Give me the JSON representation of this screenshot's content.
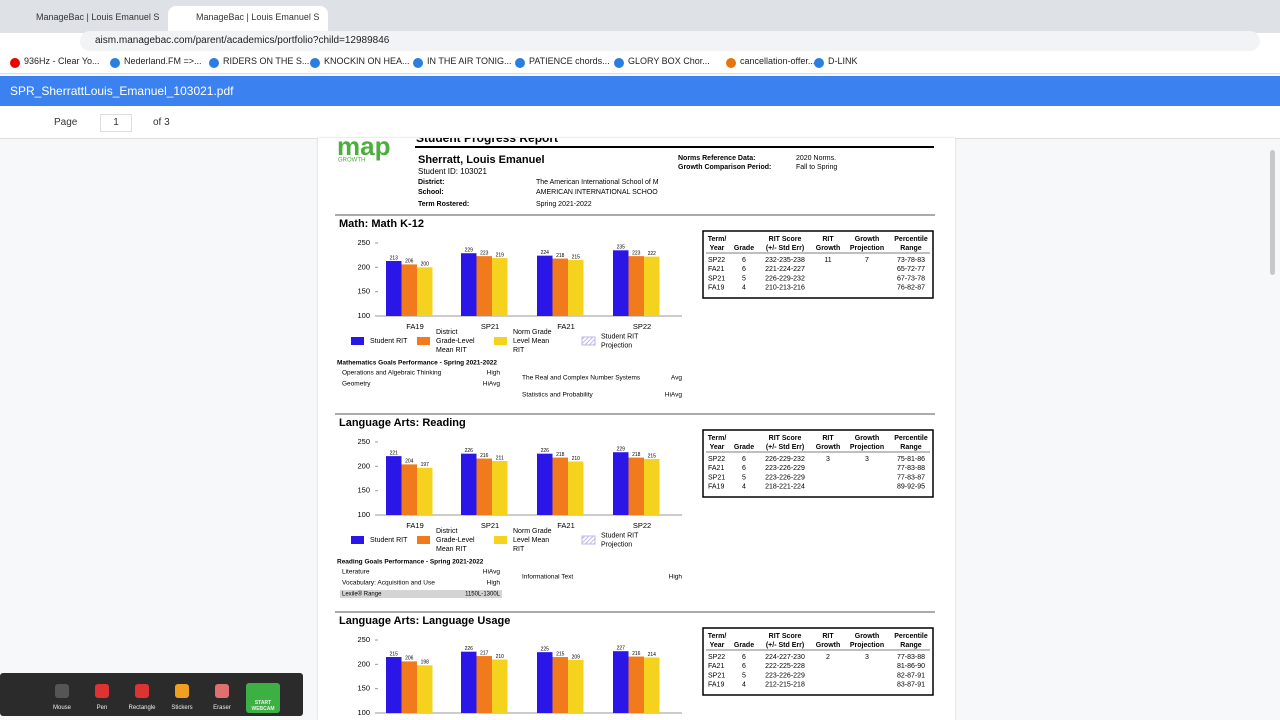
{
  "browser": {
    "tabs": [
      "ManageBac | Louis Emanuel S",
      "ManageBac | Louis Emanuel S"
    ],
    "url": "aism.managebac.com/parent/academics/portfolio?child=12989846",
    "bookmarks": [
      "936Hz - Clear Yo...",
      "Nederland.FM =>...",
      "RIDERS ON THE S...",
      "KNOCKIN ON HEA...",
      "IN THE AIR TONIG...",
      "PATIENCE chords...",
      "GLORY BOX Chor...",
      "cancellation-offer...",
      "D-LINK"
    ]
  },
  "viewer": {
    "file": "SPR_SherrattLouis_Emanuel_103021.pdf",
    "page_label": "Page",
    "page": "1",
    "page_count": "of 3"
  },
  "report": {
    "logo": "map",
    "logo_sub": "GROWTH",
    "title": "Student Progress Report",
    "student": "Sherratt, Louis Emanuel",
    "student_id": "Student ID: 103021",
    "fields": [
      {
        "label": "District:",
        "value": "The American International School of M"
      },
      {
        "label": "School:",
        "value": "AMERICAN INTERNATIONAL SCHOO"
      },
      {
        "label": "Term Rostered:",
        "value": "Spring 2021-2022"
      }
    ],
    "norms": [
      {
        "label": "Norms Reference Data:",
        "value": "2020 Norms."
      },
      {
        "label": "Growth Comparison Period:",
        "value": "Fall to Spring"
      }
    ],
    "legend": [
      {
        "lines": [
          "Student RIT"
        ],
        "color": "#2b16e8"
      },
      {
        "lines": [
          "District",
          "Grade-Level",
          "Mean RIT"
        ],
        "color": "#f07a1c"
      },
      {
        "lines": [
          "Norm Grade",
          "Level Mean",
          "RIT"
        ],
        "color": "#f4d21e"
      },
      {
        "lines": [
          "Student RIT",
          "Projection"
        ],
        "color": "#bdb6f0"
      }
    ],
    "table_header": [
      [
        "Term/",
        "Year"
      ],
      [
        "Grade"
      ],
      [
        "RIT Score",
        "(+/- Std Err)"
      ],
      [
        "RIT",
        "Growth"
      ],
      [
        "Growth",
        "Projection"
      ],
      [
        "Percentile",
        "Range"
      ]
    ],
    "sections": [
      {
        "title": "Math: Math K-12",
        "chart": {
          "type": "bar",
          "categories": [
            "FA19",
            "SP21",
            "FA21",
            "SP22"
          ],
          "ylim": [
            100,
            250
          ],
          "yticks": [
            100,
            150,
            200,
            250
          ],
          "series": [
            {
              "values": [
                213,
                229,
                224,
                235
              ]
            },
            {
              "values": [
                206,
                223,
                218,
                223
              ]
            },
            {
              "values": [
                200,
                219,
                215,
                222
              ]
            }
          ]
        },
        "table": [
          [
            "SP22",
            "6",
            "232-235-238",
            "11",
            "7",
            "73-78-83"
          ],
          [
            "FA21",
            "6",
            "221-224-227",
            null,
            null,
            "65-72-77"
          ],
          [
            "SP21",
            "5",
            "226-229-232",
            null,
            null,
            "67-73-78"
          ],
          [
            "FA19",
            "4",
            "210-213-216",
            null,
            null,
            "76-82-87"
          ]
        ],
        "goals_title": "Mathematics Goals Performance - Spring 2021-2022",
        "goals_left": [
          {
            "name": "Operations and Algebraic Thinking",
            "rating": "High"
          },
          {
            "name": "Geometry",
            "rating": "HiAvg"
          }
        ],
        "goals_right": [
          {
            "name": "The Real and Complex Number Systems",
            "rating": "Avg"
          },
          {
            "name": "Statistics and Probability",
            "rating": "HiAvg"
          }
        ]
      },
      {
        "title": "Language Arts: Reading",
        "chart": {
          "type": "bar",
          "categories": [
            "FA19",
            "SP21",
            "FA21",
            "SP22"
          ],
          "ylim": [
            100,
            250
          ],
          "yticks": [
            100,
            150,
            200,
            250
          ],
          "series": [
            {
              "values": [
                221,
                226,
                226,
                229
              ]
            },
            {
              "values": [
                204,
                216,
                218,
                218
              ]
            },
            {
              "values": [
                197,
                211,
                210,
                215
              ]
            }
          ]
        },
        "table": [
          [
            "SP22",
            "6",
            "226-229-232",
            "3",
            "3",
            "75-81-86"
          ],
          [
            "FA21",
            "6",
            "223-226-229",
            null,
            null,
            "77-83-88"
          ],
          [
            "SP21",
            "5",
            "223-226-229",
            null,
            null,
            "77-83-87"
          ],
          [
            "FA19",
            "4",
            "218-221-224",
            null,
            null,
            "89-92-95"
          ]
        ],
        "goals_title": "Reading Goals Performance - Spring 2021-2022",
        "goals_left": [
          {
            "name": "Literature",
            "rating": "HiAvg"
          },
          {
            "name": "Vocabulary: Acquisition and Use",
            "rating": "High"
          }
        ],
        "goals_right": [
          {
            "name": "Informational Text",
            "rating": "High"
          }
        ],
        "lexile": {
          "label": "Lexile® Range",
          "value": "1150L-1300L"
        }
      },
      {
        "title": "Language Arts: Language Usage",
        "chart": {
          "type": "bar",
          "ylim": [
            100,
            250
          ],
          "yticks": [
            100,
            150,
            200,
            250
          ],
          "series": [
            {
              "values": [
                215,
                226,
                225,
                227
              ]
            },
            {
              "values": [
                206,
                217,
                215,
                216
              ]
            },
            {
              "values": [
                198,
                210,
                209,
                214
              ]
            }
          ]
        },
        "table": [
          [
            "SP22",
            "6",
            "224-227-230",
            "2",
            "3",
            "77-83-88"
          ],
          [
            "FA21",
            "6",
            "222-225-228",
            null,
            null,
            "81-86-90"
          ],
          [
            "SP21",
            "5",
            "223-226-229",
            null,
            null,
            "82-87-91"
          ],
          [
            "FA19",
            "4",
            "212-215-218",
            null,
            null,
            "83-87-91"
          ]
        ]
      }
    ]
  },
  "recorder": {
    "tools": [
      "Mouse",
      "Pen",
      "Rectangle",
      "Stickers",
      "Eraser"
    ],
    "webcam": [
      "START",
      "WEBCAM"
    ]
  }
}
